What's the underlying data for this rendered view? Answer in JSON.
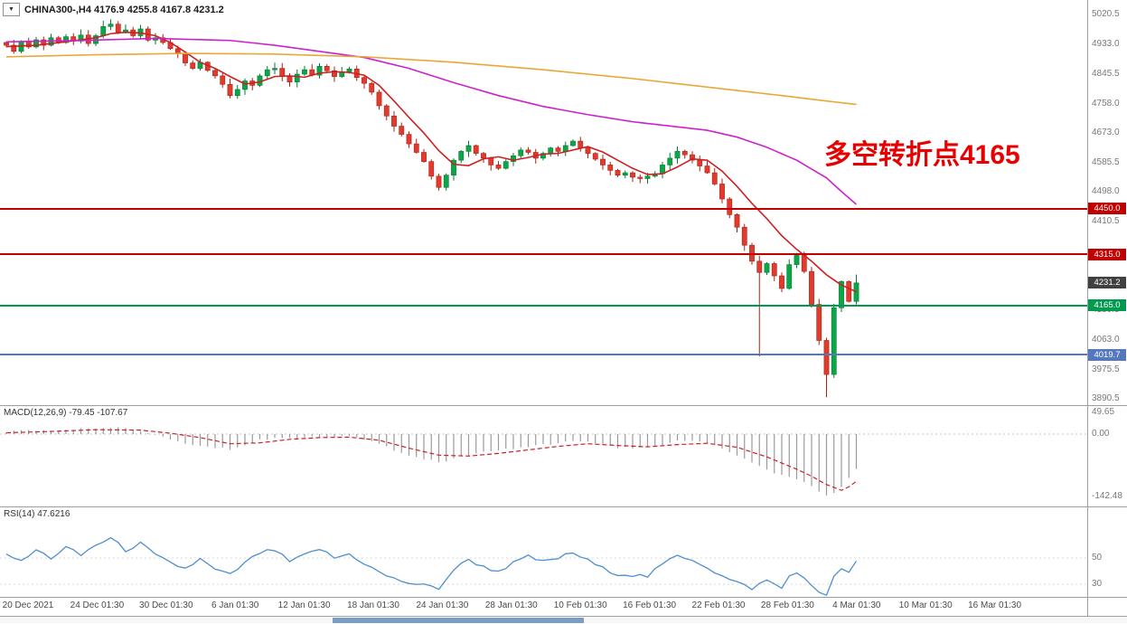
{
  "header": {
    "dropdown_icon": "▼",
    "symbol_ohlc": "CHINA300-,H4 4176.9 4255.8 4167.8 4231.2"
  },
  "annotation": {
    "text": "多空转折点4165",
    "color": "#e80000"
  },
  "price_axis": {
    "labels": [
      {
        "text": "5020.5",
        "price": 5020.5
      },
      {
        "text": "4933.0",
        "price": 4933.0
      },
      {
        "text": "4845.5",
        "price": 4845.5
      },
      {
        "text": "4758.0",
        "price": 4758.0
      },
      {
        "text": "4673.0",
        "price": 4673.0
      },
      {
        "text": "4585.5",
        "price": 4585.5
      },
      {
        "text": "4498.0",
        "price": 4498.0
      },
      {
        "text": "4410.5",
        "price": 4410.5
      },
      {
        "text": "4150.5",
        "price": 4150.5
      },
      {
        "text": "4063.0",
        "price": 4063.0
      },
      {
        "text": "3975.5",
        "price": 3975.5
      },
      {
        "text": "3890.5",
        "price": 3890.5
      }
    ],
    "badges": [
      {
        "text": "4450.0",
        "price": 4450.0,
        "color_key": "level_red"
      },
      {
        "text": "4315.0",
        "price": 4315.0,
        "color_key": "level_red"
      },
      {
        "text": "4231.2",
        "price": 4231.2,
        "color_key": "badge_current"
      },
      {
        "text": "4165.0",
        "price": 4165.0,
        "color_key": "level_green"
      },
      {
        "text": "4019.7",
        "price": 4019.7,
        "color_key": "level_blue"
      }
    ]
  },
  "levels": [
    {
      "label": "4450.0",
      "price": 4450.0,
      "color_key": "level_red",
      "thickness": 2
    },
    {
      "label": "4315.0",
      "price": 4315.0,
      "color_key": "level_red",
      "thickness": 2
    },
    {
      "label": "4165.0",
      "price": 4165.0,
      "color_key": "level_green",
      "thickness": 2
    },
    {
      "label": "4019.7",
      "price": 4019.7,
      "color_key": "level_blue",
      "thickness": 2
    }
  ],
  "indicators": {
    "macd": {
      "title": "MACD(12,26,9)",
      "values": "-79.45 -107.67",
      "axis": [
        {
          "text": "49.65",
          "value": 49.65
        },
        {
          "text": "0.00",
          "value": 0
        },
        {
          "text": "-142.48",
          "value": -142.48
        }
      ]
    },
    "rsi": {
      "title": "RSI(14)",
      "value": "47.6216",
      "axis": [
        {
          "text": "50",
          "value": 50
        },
        {
          "text": "30",
          "value": 30
        }
      ]
    }
  },
  "colors": {
    "up": "#0aa648",
    "up_edge": "#067a33",
    "down": "#e23b2e",
    "down_edge": "#a82014",
    "ma_fast": "#cc2020",
    "ma_mid": "#cc22cc",
    "ma_slow": "#e8a838",
    "macd_hist": "#9a9a9a",
    "macd_signal": "#cc2020",
    "rsi_line": "#4f8fce",
    "level_red": "#c00000",
    "level_green": "#009a4e",
    "level_blue": "#5577c0",
    "badge_current": "#404040"
  },
  "chart_data": {
    "type": "candlestick",
    "symbol": "CHINA300-",
    "timeframe": "H4",
    "last_bar": {
      "open": 4176.9,
      "high": 4255.8,
      "low": 4167.8,
      "close": 4231.2
    },
    "ylim_main": [
      3872,
      5063
    ],
    "ylim_macd": [
      -165,
      66
    ],
    "ylim_rsi": [
      20,
      89
    ],
    "x_labels": [
      "20 Dec 2021",
      "24 Dec 01:30",
      "30 Dec 01:30",
      "6 Jan 01:30",
      "12 Jan 01:30",
      "18 Jan 01:30",
      "24 Jan 01:30",
      "28 Jan 01:30",
      "10 Feb 01:30",
      "16 Feb 01:30",
      "22 Feb 01:30",
      "28 Feb 01:30",
      "4 Mar 01:30",
      "10 Mar 01:30",
      "16 Mar 01:30"
    ],
    "first_open": 4938,
    "closes": [
      4930,
      4912,
      4941,
      4925,
      4946,
      4930,
      4952,
      4938,
      4955,
      4942,
      4960,
      4935,
      4958,
      4985,
      4992,
      4968,
      4975,
      4958,
      4978,
      4945,
      4952,
      4938,
      4920,
      4905,
      4878,
      4862,
      4880,
      4856,
      4840,
      4815,
      4782,
      4800,
      4825,
      4812,
      4840,
      4858,
      4862,
      4838,
      4822,
      4845,
      4858,
      4842,
      4868,
      4855,
      4838,
      4852,
      4860,
      4835,
      4818,
      4792,
      4752,
      4722,
      4692,
      4668,
      4640,
      4615,
      4588,
      4545,
      4512,
      4548,
      4592,
      4618,
      4635,
      4612,
      4598,
      4578,
      4568,
      4588,
      4605,
      4622,
      4615,
      4598,
      4612,
      4628,
      4618,
      4635,
      4648,
      4628,
      4612,
      4595,
      4578,
      4562,
      4548,
      4555,
      4542,
      4538,
      4545,
      4552,
      4578,
      4598,
      4618,
      4608,
      4592,
      4575,
      4555,
      4522,
      4478,
      4432,
      4395,
      4342,
      4295,
      4262,
      4288,
      4252,
      4215,
      4285,
      4312,
      4265,
      4168,
      4062,
      3962,
      4158,
      4235,
      4176.9,
      4231.2
    ],
    "wick_overrides": {
      "101": {
        "low": 4015
      },
      "110": {
        "low": 3895,
        "high": 4070
      },
      "114": {
        "high": 4255.8,
        "low": 4167.8
      }
    },
    "moving_averages": [
      {
        "name": "ma-fast-red",
        "color_key": "ma_fast",
        "anchors": [
          [
            0,
            4926
          ],
          [
            4,
            4930
          ],
          [
            8,
            4940
          ],
          [
            12,
            4952
          ],
          [
            14,
            4964
          ],
          [
            16,
            4968
          ],
          [
            18,
            4966
          ],
          [
            20,
            4958
          ],
          [
            22,
            4938
          ],
          [
            24,
            4910
          ],
          [
            26,
            4880
          ],
          [
            28,
            4862
          ],
          [
            30,
            4838
          ],
          [
            32,
            4816
          ],
          [
            34,
            4822
          ],
          [
            36,
            4838
          ],
          [
            38,
            4840
          ],
          [
            40,
            4836
          ],
          [
            42,
            4848
          ],
          [
            44,
            4852
          ],
          [
            46,
            4850
          ],
          [
            48,
            4842
          ],
          [
            50,
            4812
          ],
          [
            52,
            4766
          ],
          [
            54,
            4718
          ],
          [
            56,
            4672
          ],
          [
            58,
            4620
          ],
          [
            60,
            4580
          ],
          [
            62,
            4576
          ],
          [
            64,
            4596
          ],
          [
            66,
            4602
          ],
          [
            68,
            4592
          ],
          [
            70,
            4600
          ],
          [
            72,
            4610
          ],
          [
            74,
            4612
          ],
          [
            76,
            4622
          ],
          [
            78,
            4632
          ],
          [
            80,
            4616
          ],
          [
            82,
            4592
          ],
          [
            84,
            4568
          ],
          [
            86,
            4550
          ],
          [
            88,
            4552
          ],
          [
            90,
            4572
          ],
          [
            92,
            4596
          ],
          [
            94,
            4592
          ],
          [
            96,
            4560
          ],
          [
            98,
            4515
          ],
          [
            100,
            4465
          ],
          [
            102,
            4420
          ],
          [
            104,
            4370
          ],
          [
            106,
            4330
          ],
          [
            108,
            4295
          ],
          [
            110,
            4255
          ],
          [
            112,
            4225
          ],
          [
            114,
            4205
          ]
        ]
      },
      {
        "name": "ma-mid-magenta",
        "color_key": "ma_mid",
        "anchors": [
          [
            0,
            4940
          ],
          [
            10,
            4944
          ],
          [
            20,
            4950
          ],
          [
            30,
            4944
          ],
          [
            36,
            4930
          ],
          [
            42,
            4912
          ],
          [
            48,
            4894
          ],
          [
            54,
            4862
          ],
          [
            60,
            4820
          ],
          [
            66,
            4782
          ],
          [
            72,
            4750
          ],
          [
            78,
            4726
          ],
          [
            84,
            4705
          ],
          [
            90,
            4690
          ],
          [
            94,
            4680
          ],
          [
            98,
            4660
          ],
          [
            102,
            4630
          ],
          [
            106,
            4592
          ],
          [
            110,
            4540
          ],
          [
            112,
            4500
          ],
          [
            114,
            4462
          ]
        ]
      },
      {
        "name": "ma-slow-orange",
        "color_key": "ma_slow",
        "anchors": [
          [
            0,
            4896
          ],
          [
            12,
            4902
          ],
          [
            24,
            4906
          ],
          [
            36,
            4904
          ],
          [
            48,
            4896
          ],
          [
            60,
            4880
          ],
          [
            72,
            4858
          ],
          [
            84,
            4832
          ],
          [
            96,
            4802
          ],
          [
            104,
            4782
          ],
          [
            110,
            4766
          ],
          [
            114,
            4756
          ]
        ]
      }
    ],
    "macd": {
      "hist_anchors": [
        [
          0,
          5
        ],
        [
          4,
          8
        ],
        [
          8,
          9
        ],
        [
          12,
          14
        ],
        [
          14,
          16
        ],
        [
          16,
          12
        ],
        [
          18,
          8
        ],
        [
          20,
          0
        ],
        [
          22,
          -10
        ],
        [
          24,
          -20
        ],
        [
          26,
          -26
        ],
        [
          28,
          -30
        ],
        [
          30,
          -34
        ],
        [
          32,
          -24
        ],
        [
          34,
          -14
        ],
        [
          36,
          -8
        ],
        [
          38,
          -10
        ],
        [
          40,
          -6
        ],
        [
          42,
          -4
        ],
        [
          44,
          -6
        ],
        [
          46,
          -5
        ],
        [
          48,
          -10
        ],
        [
          50,
          -22
        ],
        [
          52,
          -38
        ],
        [
          54,
          -50
        ],
        [
          56,
          -58
        ],
        [
          58,
          -64
        ],
        [
          60,
          -56
        ],
        [
          62,
          -46
        ],
        [
          64,
          -40
        ],
        [
          66,
          -38
        ],
        [
          68,
          -33
        ],
        [
          70,
          -28
        ],
        [
          72,
          -24
        ],
        [
          74,
          -20
        ],
        [
          76,
          -16
        ],
        [
          78,
          -18
        ],
        [
          80,
          -24
        ],
        [
          82,
          -30
        ],
        [
          84,
          -32
        ],
        [
          86,
          -30
        ],
        [
          88,
          -24
        ],
        [
          90,
          -16
        ],
        [
          92,
          -14
        ],
        [
          94,
          -20
        ],
        [
          96,
          -32
        ],
        [
          98,
          -48
        ],
        [
          100,
          -64
        ],
        [
          102,
          -80
        ],
        [
          104,
          -95
        ],
        [
          106,
          -102
        ],
        [
          108,
          -118
        ],
        [
          109,
          -130
        ],
        [
          110,
          -142
        ],
        [
          111,
          -136
        ],
        [
          112,
          -122
        ],
        [
          113,
          -100
        ],
        [
          114,
          -79.45
        ]
      ],
      "signal_anchors": [
        [
          0,
          3
        ],
        [
          6,
          6
        ],
        [
          12,
          10
        ],
        [
          18,
          9
        ],
        [
          22,
          2
        ],
        [
          26,
          -8
        ],
        [
          30,
          -22
        ],
        [
          34,
          -20
        ],
        [
          38,
          -12
        ],
        [
          42,
          -8
        ],
        [
          46,
          -7
        ],
        [
          50,
          -14
        ],
        [
          54,
          -32
        ],
        [
          58,
          -48
        ],
        [
          62,
          -50
        ],
        [
          66,
          -44
        ],
        [
          70,
          -36
        ],
        [
          74,
          -28
        ],
        [
          78,
          -22
        ],
        [
          82,
          -26
        ],
        [
          86,
          -29
        ],
        [
          90,
          -24
        ],
        [
          94,
          -21
        ],
        [
          98,
          -30
        ],
        [
          102,
          -52
        ],
        [
          104,
          -66
        ],
        [
          106,
          -80
        ],
        [
          108,
          -96
        ],
        [
          110,
          -115
        ],
        [
          112,
          -128
        ],
        [
          113,
          -120
        ],
        [
          114,
          -107.67
        ]
      ]
    },
    "rsi_anchors": [
      [
        0,
        54
      ],
      [
        2,
        47
      ],
      [
        4,
        56
      ],
      [
        6,
        50
      ],
      [
        8,
        58
      ],
      [
        10,
        52
      ],
      [
        12,
        60
      ],
      [
        14,
        65
      ],
      [
        16,
        56
      ],
      [
        18,
        61
      ],
      [
        20,
        52
      ],
      [
        22,
        46
      ],
      [
        24,
        42
      ],
      [
        26,
        49
      ],
      [
        28,
        41
      ],
      [
        30,
        37
      ],
      [
        32,
        46
      ],
      [
        34,
        54
      ],
      [
        36,
        56
      ],
      [
        38,
        47
      ],
      [
        40,
        52
      ],
      [
        42,
        57
      ],
      [
        44,
        50
      ],
      [
        46,
        53
      ],
      [
        48,
        46
      ],
      [
        50,
        39
      ],
      [
        52,
        34
      ],
      [
        54,
        31
      ],
      [
        56,
        29
      ],
      [
        58,
        27
      ],
      [
        60,
        41
      ],
      [
        62,
        49
      ],
      [
        64,
        43
      ],
      [
        66,
        40
      ],
      [
        68,
        46
      ],
      [
        70,
        51
      ],
      [
        72,
        47
      ],
      [
        74,
        50
      ],
      [
        76,
        54
      ],
      [
        78,
        48
      ],
      [
        80,
        42
      ],
      [
        82,
        38
      ],
      [
        84,
        37
      ],
      [
        86,
        36
      ],
      [
        88,
        45
      ],
      [
        90,
        52
      ],
      [
        92,
        49
      ],
      [
        94,
        43
      ],
      [
        96,
        36
      ],
      [
        98,
        31
      ],
      [
        100,
        27
      ],
      [
        101,
        30
      ],
      [
        102,
        33
      ],
      [
        103,
        30
      ],
      [
        104,
        27
      ],
      [
        105,
        36
      ],
      [
        106,
        40
      ],
      [
        107,
        34
      ],
      [
        108,
        28
      ],
      [
        109,
        24
      ],
      [
        110,
        22
      ],
      [
        111,
        37
      ],
      [
        112,
        41
      ],
      [
        113,
        38
      ],
      [
        114,
        47.62
      ]
    ]
  }
}
